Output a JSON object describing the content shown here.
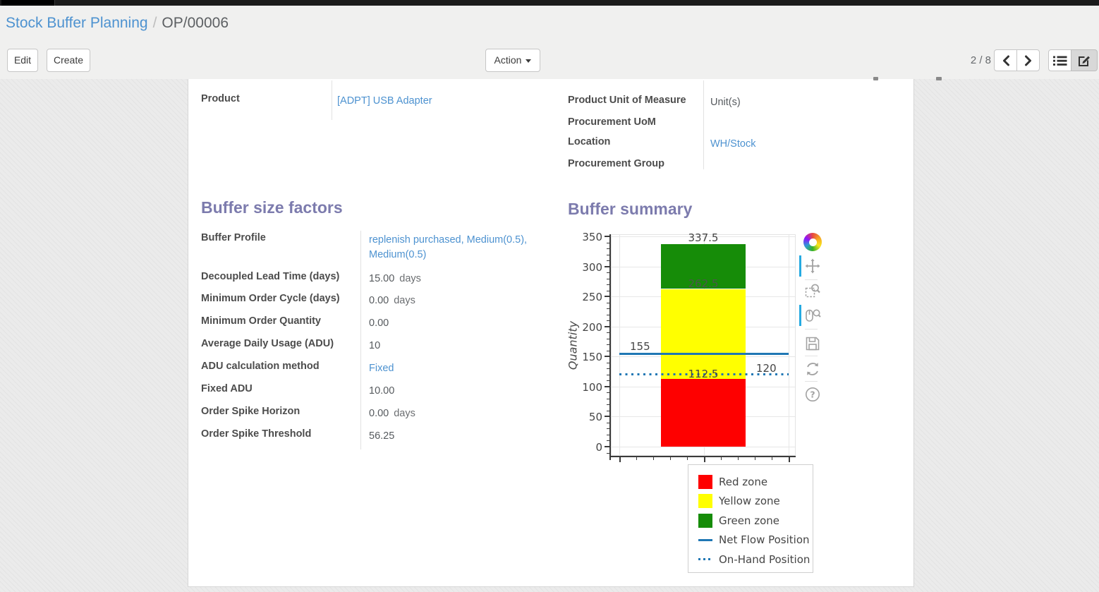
{
  "breadcrumb": {
    "parent": "Stock Buffer Planning",
    "separator": "/",
    "current": "OP/00006"
  },
  "control_panel": {
    "edit_label": "Edit",
    "create_label": "Create",
    "action_label": "Action",
    "pager_text": "2 / 8"
  },
  "form": {
    "top_left": [
      {
        "label": "Product",
        "value": "[ADPT] USB Adapter",
        "link": true
      }
    ],
    "top_right": [
      {
        "label": "Product Unit of Measure",
        "value": "Unit(s)"
      },
      {
        "label": "Procurement UoM",
        "value": ""
      },
      {
        "label": "Location",
        "value": "WH/Stock",
        "link": true
      },
      {
        "label": "Procurement Group",
        "value": ""
      }
    ],
    "buffer_factors_title": "Buffer size factors",
    "buffer_factors": [
      {
        "label": "Buffer Profile",
        "value": "replenish purchased, Medium(0.5), Medium(0.5)",
        "link": true
      },
      {
        "label": "Decoupled Lead Time (days)",
        "value": "15.00",
        "unit": "days"
      },
      {
        "label": "Minimum Order Cycle (days)",
        "value": "0.00",
        "unit": "days"
      },
      {
        "label": "Minimum Order Quantity",
        "value": "0.00"
      },
      {
        "label": "Average Daily Usage (ADU)",
        "value": "10"
      },
      {
        "label": "ADU calculation method",
        "value": "Fixed",
        "link": true
      },
      {
        "label": "Fixed ADU",
        "value": "10.00"
      },
      {
        "label": "Order Spike Horizon",
        "value": "0.00",
        "unit": "days"
      },
      {
        "label": "Order Spike Threshold",
        "value": "56.25"
      }
    ],
    "buffer_summary_title": "Buffer summary"
  },
  "chart_data": {
    "type": "bar",
    "title": "",
    "xlabel": "",
    "ylabel": "Quantity",
    "ylim": [
      0,
      350
    ],
    "yticks": [
      0,
      50,
      100,
      150,
      200,
      250,
      300,
      350
    ],
    "grid": true,
    "zones": [
      {
        "name": "Red zone",
        "color": "#fe0000",
        "from": 0,
        "to": 112.5
      },
      {
        "name": "Yellow zone",
        "color": "#ffff00",
        "from": 112.5,
        "to": 262.5
      },
      {
        "name": "Green zone",
        "color": "#168c08",
        "from": 262.5,
        "to": 337.5
      }
    ],
    "lines": [
      {
        "name": "Net Flow Position",
        "value": 155,
        "style": "solid",
        "color": "#1f77b4",
        "label_side": "left"
      },
      {
        "name": "On-Hand Position",
        "value": 120,
        "style": "dotted",
        "color": "#1f77b4",
        "label_side": "right"
      }
    ],
    "zone_boundary_labels": [
      337.5,
      262.5,
      112.5
    ],
    "legend": [
      "Red zone",
      "Yellow zone",
      "Green zone",
      "Net Flow Position",
      "On-Hand Position"
    ],
    "legend_position": "below-right"
  },
  "chart_toolbar": {
    "tools": [
      "bokeh-logo",
      "pan",
      "box-zoom",
      "wheel-zoom",
      "save",
      "reset",
      "help"
    ],
    "active_tools": [
      "pan",
      "wheel-zoom"
    ],
    "active_color": "#26aae1"
  },
  "colors": {
    "link": "#4d92d0",
    "section_heading": "#7c7bad"
  }
}
